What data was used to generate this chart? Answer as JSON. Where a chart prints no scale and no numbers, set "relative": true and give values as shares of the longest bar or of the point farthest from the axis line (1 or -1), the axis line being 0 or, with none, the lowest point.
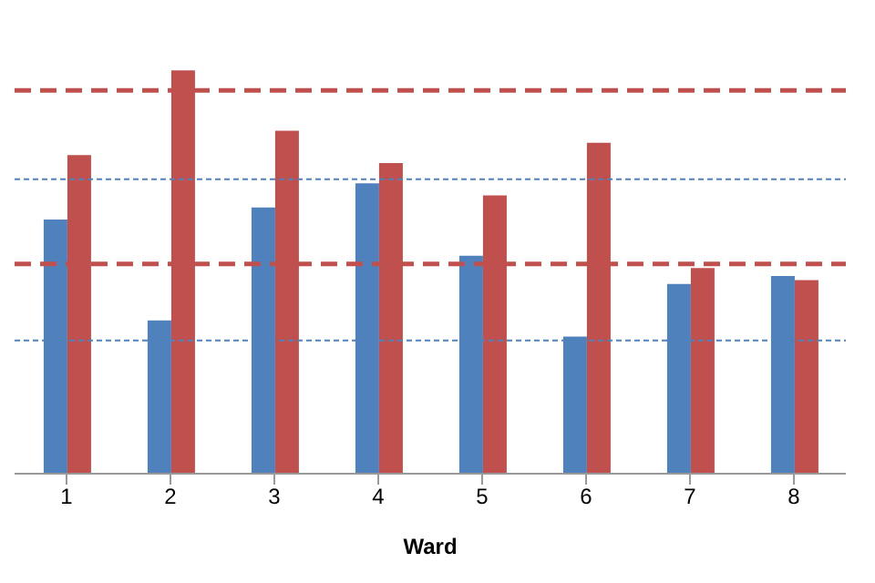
{
  "chart_data": {
    "type": "bar",
    "xlabel": "Ward",
    "categories": [
      "1",
      "2",
      "3",
      "4",
      "5",
      "6",
      "7",
      "8"
    ],
    "relative": true,
    "series": [
      {
        "color": "#4f81bd",
        "values": [
          0.63,
          0.38,
          0.66,
          0.72,
          0.54,
          0.34,
          0.47,
          0.49
        ]
      },
      {
        "color": "#c0504d",
        "values": [
          0.79,
          1,
          0.85,
          0.77,
          0.69,
          0.82,
          0.51,
          0.48
        ]
      }
    ],
    "legend": false,
    "ref_lines": [
      {
        "axis": "y",
        "value": 0.95,
        "color": "#c0504d",
        "line_style": "dashed"
      },
      {
        "axis": "y",
        "value": 0.52,
        "color": "#c0504d",
        "line_style": "dashed"
      },
      {
        "axis": "y",
        "value": 0.73,
        "color": "#4f81bd",
        "line_style": "dotted"
      },
      {
        "axis": "y",
        "value": 0.33,
        "color": "#4f81bd",
        "line_style": "dotted"
      }
    ]
  }
}
